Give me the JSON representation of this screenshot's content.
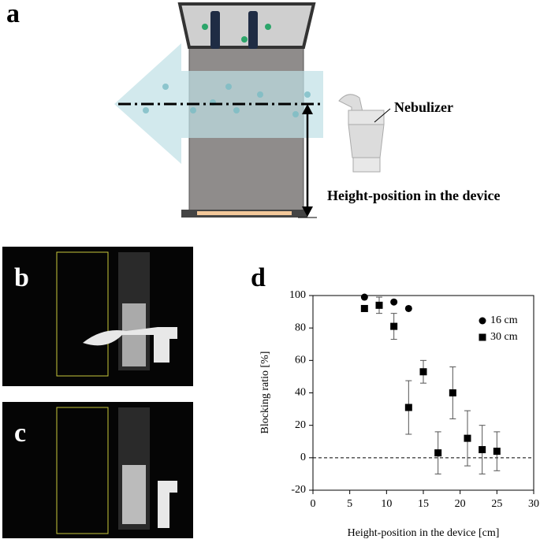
{
  "panels": {
    "a": "a",
    "b": "b",
    "c": "c",
    "d": "d"
  },
  "annotations": {
    "nebulizer": "Nebulizer",
    "height": "Height-position in the device"
  },
  "chart_data": {
    "type": "scatter",
    "xlabel": "Height-position in the device [cm]",
    "ylabel": "Blocking ratio [%]",
    "xlim": [
      0,
      30
    ],
    "xticks": [
      0,
      5,
      10,
      15,
      20,
      25,
      30
    ],
    "ylim": [
      -20,
      100
    ],
    "yticks": [
      -20,
      0,
      20,
      40,
      60,
      80,
      100
    ],
    "legend": "upper right",
    "reference_line": "dashed",
    "series": [
      {
        "name": "16 cm",
        "marker": "circle",
        "color": "#000000",
        "x": [
          7,
          11,
          13
        ],
        "values": [
          99,
          96,
          92
        ]
      },
      {
        "name": "30 cm",
        "marker": "square",
        "color": "#000000",
        "x": [
          7,
          9,
          11,
          13,
          15,
          17,
          19,
          21,
          23,
          25
        ],
        "values": [
          92,
          94,
          81,
          31,
          53,
          3,
          40,
          12,
          5,
          4
        ],
        "errors": [
          null,
          5,
          8,
          16.5,
          7,
          13,
          16,
          17,
          15,
          12
        ]
      }
    ]
  }
}
